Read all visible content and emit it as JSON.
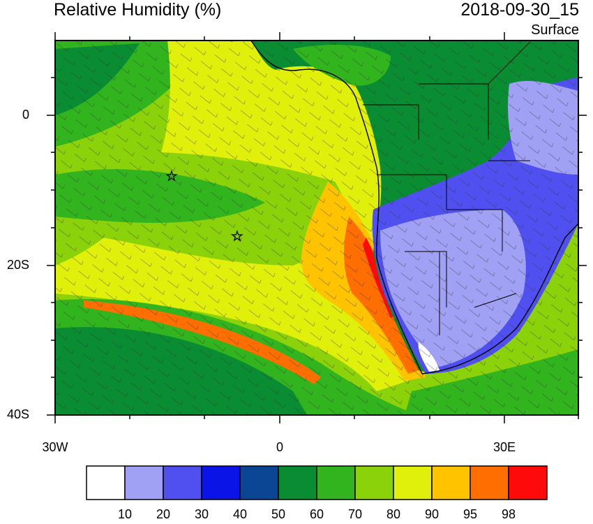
{
  "title": "Relative Humidity (%)",
  "datetime": "2018-09-30_15",
  "level": "Surface",
  "y_axis_labels": [
    "0",
    "20S",
    "40S"
  ],
  "x_axis_labels": [
    "30W",
    "0",
    "30E"
  ],
  "colorbar": {
    "labels": [
      "10",
      "20",
      "30",
      "40",
      "50",
      "60",
      "70",
      "80",
      "90",
      "95",
      "98"
    ],
    "colors": [
      "#ffffff",
      "#a0a0f5",
      "#5050f0",
      "#0a14e6",
      "#0a4694",
      "#0a8c32",
      "#32b41e",
      "#8cd20a",
      "#e1f00a",
      "#ffc300",
      "#ff6e00",
      "#ff0a0a"
    ]
  },
  "markers": [
    "star",
    "star"
  ]
}
